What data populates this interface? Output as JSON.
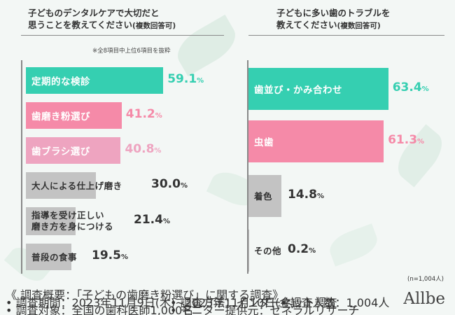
{
  "left_panel": {
    "title_line1": "子どものデンタルケアで大切だと",
    "title_line2": "思うことを教えてください",
    "title_sub": "(複数回答可)",
    "note": "※全8項目中上位6項目を抜粋"
  },
  "right_panel": {
    "title_line1": "子どもに多い歯のトラブルを",
    "title_line2": "教えてください",
    "title_sub": "(複数回答可)",
    "n_label": "(n=1,004人)"
  },
  "footer": {
    "line1": "《 調査概要：「子どもの歯磨き粉選び」に関する調査》",
    "line2": "• 調査期間：2023年11月9日(木)~2023年11月10日(金)",
    "line3": "• 調査対象：全国の歯科医師1,000名",
    "method": "• 調査方法：インターネット調査",
    "provider": "• モニター提供元：ゼネラルリサーチ",
    "count": "• 調査人数：1,004人",
    "logo": "Allbe"
  },
  "colors": {
    "teal": "#35cfb1",
    "pink": "#f58aa8",
    "pink_light": "#eea4c0",
    "gray": "#c3c3c3",
    "value_gray": "#333333"
  },
  "chart_data": [
    {
      "type": "bar",
      "orientation": "horizontal",
      "title": "子どものデンタルケアで大切だと思うことを教えてください(複数回答可)",
      "categories": [
        "定期的な検診",
        "歯磨き粉選び",
        "歯ブラシ選び",
        "大人による仕上げ磨き",
        "指導を受け正しい磨き方を身につける",
        "普段の食事"
      ],
      "display_labels": [
        "定期的な検診",
        "歯磨き粉選び",
        "歯ブラシ選び",
        "大人による仕上げ磨き",
        "指導を受け正しい\n磨き方を身につける",
        "普段の食事"
      ],
      "values": [
        59.1,
        41.2,
        40.8,
        30.0,
        21.4,
        19.5
      ],
      "value_labels": [
        "59.1",
        "41.2",
        "40.8",
        "30.0",
        "21.4",
        "19.5"
      ],
      "unit": "%",
      "bar_colors": [
        "#35cfb1",
        "#f58aa8",
        "#eea4c0",
        "#c3c3c3",
        "#c3c3c3",
        "#c3c3c3"
      ],
      "value_colors": [
        "#35cfb1",
        "#f58aa8",
        "#eea4c0",
        "#333333",
        "#333333",
        "#333333"
      ],
      "dark_label": [
        false,
        false,
        false,
        true,
        true,
        true
      ]
    },
    {
      "type": "bar",
      "orientation": "horizontal",
      "title": "子どもに多い歯のトラブルを教えてください(複数回答可)",
      "categories": [
        "歯並び・かみ合わせ",
        "虫歯",
        "着色",
        "その他"
      ],
      "display_labels": [
        "歯並び・かみ合わせ",
        "虫歯",
        "着色",
        "その他"
      ],
      "values": [
        63.4,
        61.3,
        14.8,
        0.2
      ],
      "value_labels": [
        "63.4",
        "61.3",
        "14.8",
        "0.2"
      ],
      "unit": "%",
      "bar_colors": [
        "#35cfb1",
        "#f58aa8",
        "#c3c3c3",
        "#c3c3c3"
      ],
      "value_colors": [
        "#35cfb1",
        "#f58aa8",
        "#333333",
        "#333333"
      ],
      "dark_label": [
        false,
        false,
        true,
        true
      ]
    }
  ]
}
